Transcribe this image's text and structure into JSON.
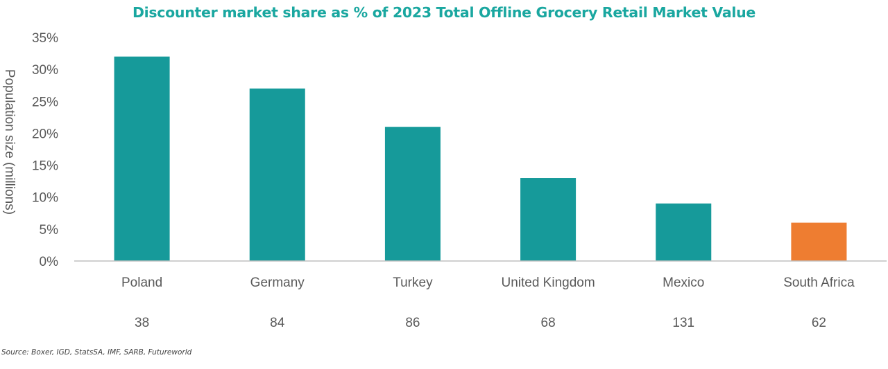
{
  "chart_data": {
    "type": "bar",
    "title": "Discounter market share as % of 2023 Total Offline Grocery Retail Market Value",
    "xlabel": "",
    "ylabel": "Population size (millions)",
    "ylim": [
      0,
      35
    ],
    "yticks": [
      "0%",
      "5%",
      "10%",
      "15%",
      "20%",
      "25%",
      "30%",
      "35%"
    ],
    "ytick_values": [
      0,
      5,
      10,
      15,
      20,
      25,
      30,
      35
    ],
    "categories": [
      "Poland",
      "Germany",
      "Turkey",
      "United Kingdom",
      "Mexico",
      "South Africa"
    ],
    "values": [
      32,
      27,
      21,
      13,
      9,
      6
    ],
    "population": [
      "38",
      "84",
      "86",
      "68",
      "131",
      "62"
    ],
    "bar_colors": [
      "#169a9a",
      "#169a9a",
      "#169a9a",
      "#169a9a",
      "#169a9a",
      "#ee7d31"
    ],
    "title_color": "#1aa7a0",
    "axis_color": "#c0c0c0",
    "grid": false,
    "legend": "none"
  },
  "source": "Source: Boxer, IGD, StatsSA, IMF, SARB, Futureworld"
}
